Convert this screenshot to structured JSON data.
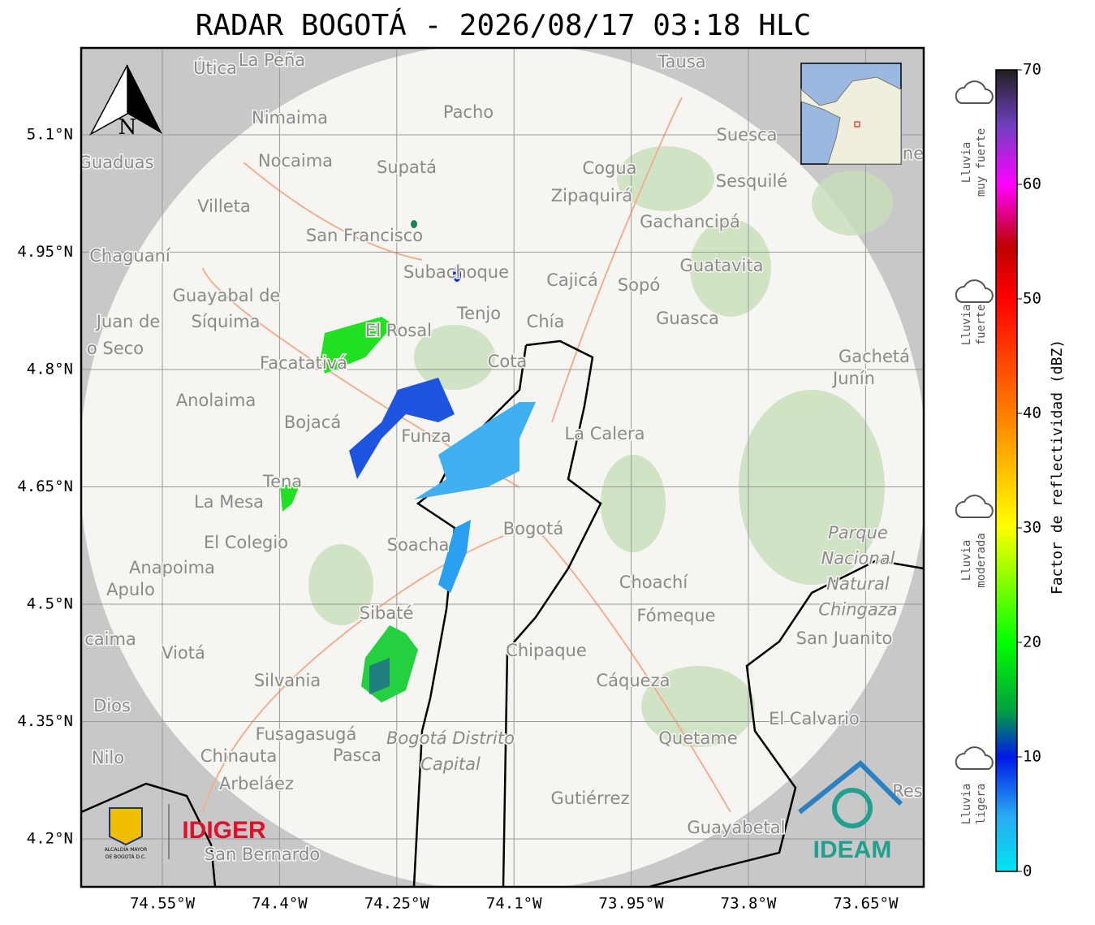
{
  "title": "RADAR BOGOTÁ - 2026/08/17 03:18 HLC",
  "map": {
    "lat_ticks": [
      "5.1°N",
      "4.95°N",
      "4.8°N",
      "4.65°N",
      "4.5°N",
      "4.35°N",
      "4.2°N"
    ],
    "lon_ticks": [
      "74.55°W",
      "74.4°W",
      "74.25°W",
      "74.1°W",
      "73.95°W",
      "73.8°W",
      "73.65°W"
    ],
    "north_label": "N",
    "places": [
      "Útica",
      "La Peña",
      "Tausa",
      "Pacho",
      "Nimaima",
      "Suesca",
      "Guaduas",
      "Nocaima",
      "Supatá",
      "Cogua",
      "Sesquilé",
      "Zipaquirá",
      "Villeta",
      "Gachancipá",
      "San Francisco",
      "Chaguaní",
      "Guatavita",
      "Subachoque",
      "Cajicá",
      "Sopó",
      "Guayabal de",
      "Síquima",
      "Tenjo",
      "Juan de",
      "Chía",
      "Guasca",
      "Facatativá",
      "El Rosal",
      "o Seco",
      "Cota",
      "Gachetá",
      "Junín",
      "Anolaima",
      "Bojacá",
      "La Calera",
      "Funza",
      "Tena",
      "La Mesa",
      "Bogotá",
      "Soacha",
      "El Colegio",
      "Anapoima",
      "Apulo",
      "Choachí",
      "Sibaté",
      "Fómeque",
      "San Juanito",
      "caima",
      "Viotá",
      "Chipaque",
      "Silvania",
      "Cáqueza",
      "Dios",
      "El Calvario",
      "Fusagasugá",
      "Quetame",
      "Nilo",
      "Chinauta",
      "Pasca",
      "Arbeláez",
      "Gutiérrez",
      "Guayabetal",
      "San Bernardo",
      "Res",
      "ne"
    ],
    "park_label": [
      "Parque",
      "Nacional",
      "Natural",
      "Chingaza"
    ],
    "district_label": [
      "Bogotá Distrito",
      "Capital"
    ]
  },
  "colorbar": {
    "label": "Factor de reflectividad (dBZ)",
    "range": [
      0,
      70
    ],
    "ticks": [
      0,
      10,
      20,
      30,
      40,
      50,
      60,
      70
    ],
    "intensity": [
      [
        "Lluvia",
        "muy fuerte"
      ],
      [
        "Lluvia",
        "fuerte"
      ],
      [
        "Lluvia",
        "moderada"
      ],
      [
        "Lluvia",
        "ligera"
      ]
    ]
  },
  "logos": {
    "alcaldia": [
      "ALCALDÍA MAYOR",
      "DE BOGOTÁ D.C."
    ],
    "idiger": "IDIGER",
    "ideam": "IDEAM"
  }
}
